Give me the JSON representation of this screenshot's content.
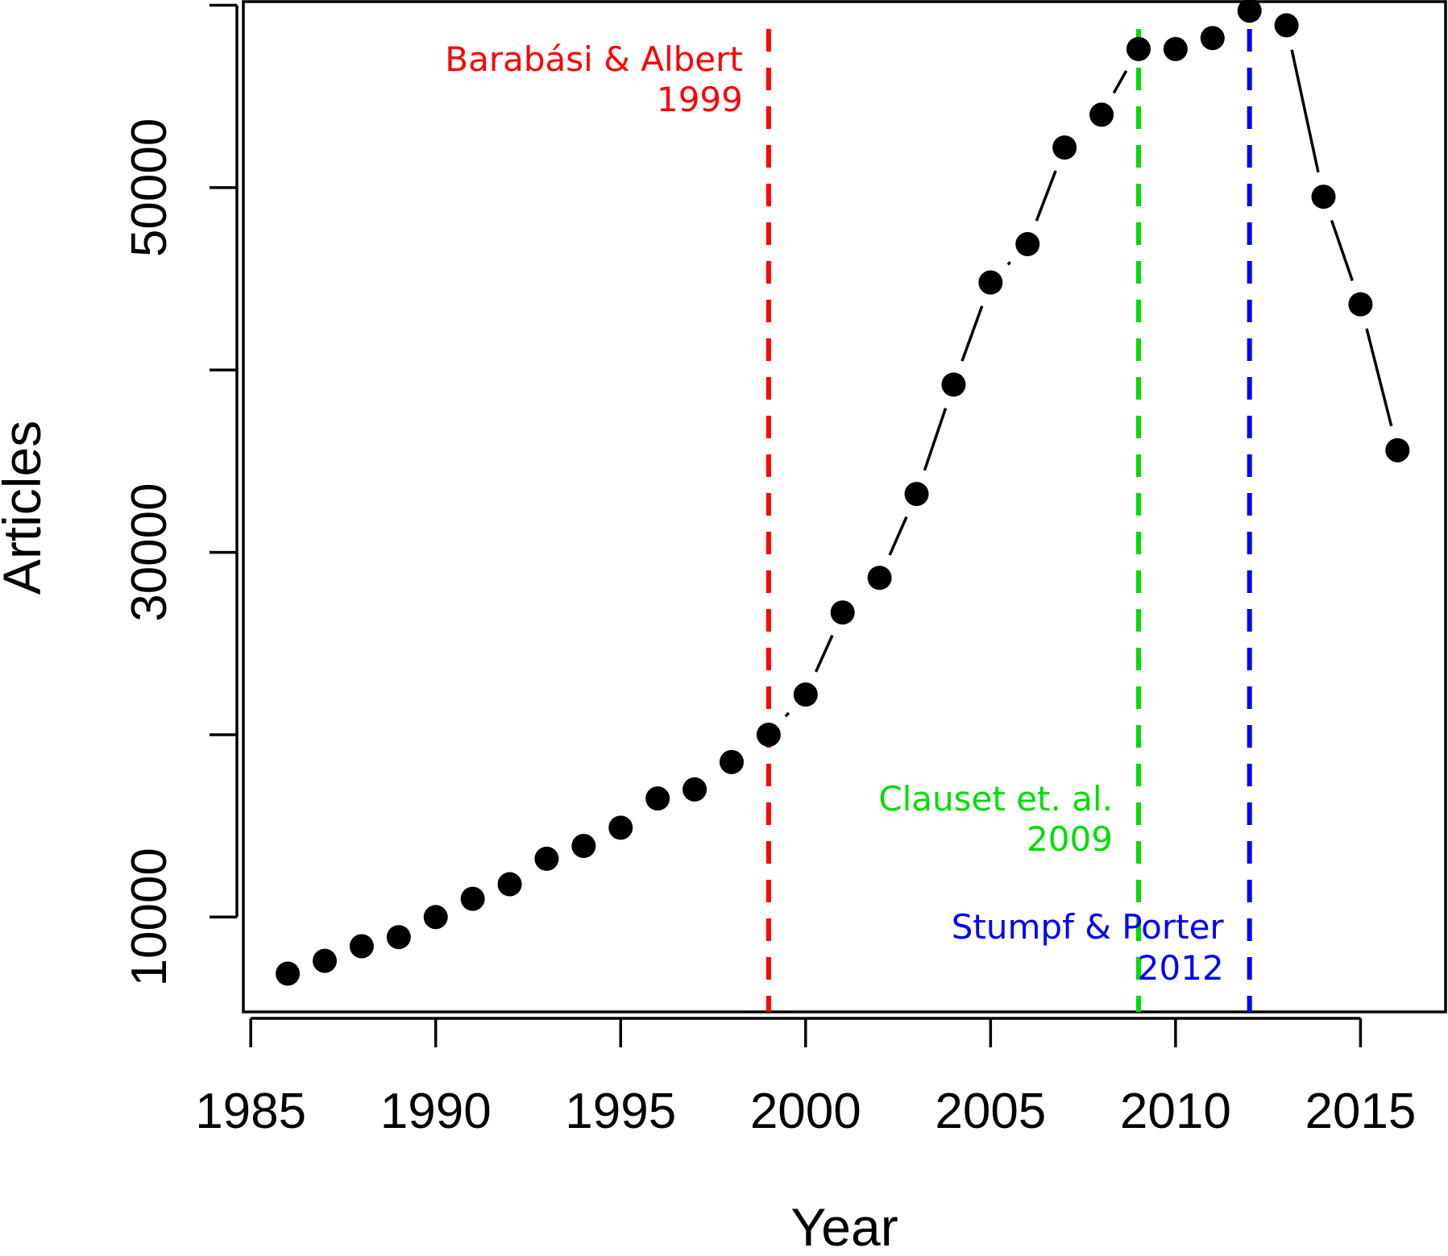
{
  "chart_data": {
    "type": "line",
    "xlabel": "Year",
    "ylabel": "Articles",
    "xlim": [
      1984.8,
      2017.3
    ],
    "ylim": [
      4800,
      60200
    ],
    "x_ticks": [
      1985,
      1990,
      1995,
      2000,
      2005,
      2010,
      2015
    ],
    "y_ticks": [
      10000,
      20000,
      30000,
      40000,
      50000,
      60000
    ],
    "y_tick_labels": [
      "10000",
      "",
      "30000",
      "",
      "50000",
      ""
    ],
    "grid": false,
    "legend": "none",
    "series": [
      {
        "marker": "filled-circle",
        "line_style": "broken",
        "color": "#000000",
        "x": [
          1986,
          1987,
          1988,
          1989,
          1990,
          1991,
          1992,
          1993,
          1994,
          1995,
          1996,
          1997,
          1998,
          1999,
          2000,
          2001,
          2002,
          2003,
          2004,
          2005,
          2006,
          2007,
          2008,
          2009,
          2010,
          2011,
          2012,
          2013,
          2014,
          2015,
          2016
        ],
        "y": [
          6900,
          7600,
          8400,
          8900,
          10000,
          11000,
          11800,
          13200,
          13900,
          14900,
          16500,
          17000,
          18500,
          20000,
          22200,
          26700,
          28600,
          33200,
          39200,
          44800,
          46900,
          52200,
          54000,
          57600,
          57600,
          58200,
          59700,
          58900,
          49500,
          43600,
          35600
        ]
      }
    ],
    "annotations": [
      {
        "lines": [
          "Barabási & Albert",
          "1999"
        ],
        "x": 1999,
        "color": "#ff0000"
      },
      {
        "lines": [
          "Clauset et. al.",
          "2009"
        ],
        "x": 2009,
        "color": "#00dd00"
      },
      {
        "lines": [
          "Stumpf & Porter",
          "2012"
        ],
        "x": 2012,
        "color": "#0000ff"
      }
    ]
  }
}
